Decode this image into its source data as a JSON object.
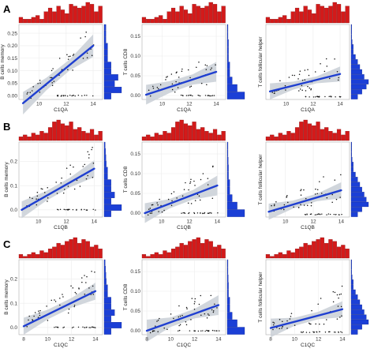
{
  "colors": {
    "histogram_top": "#d31a1a",
    "histogram_right": "#1b3fd6",
    "regression_line": "#1f3fd0",
    "confidence_band": "#c9cfd6",
    "points": "#111111",
    "panel_background": "#ffffff",
    "grid": "#ececec"
  },
  "chart_data": [
    {
      "type": "scatter",
      "panel_label": "A",
      "xlabel": "C1QA",
      "ylabel": "B cells memory",
      "xticks": [
        "10",
        "12",
        "14"
      ],
      "yticks": [
        "0.00",
        "0.05",
        "0.10",
        "0.15",
        "0.20",
        "0.25"
      ],
      "xlim": [
        8.5,
        14.7
      ],
      "ylim": [
        -0.015,
        0.285
      ],
      "fit": {
        "x0": 8.8,
        "y0": -0.03,
        "x1": 14,
        "y1": 0.2
      },
      "band": [
        0.045,
        0.025,
        0.022,
        0.045
      ],
      "hist_top": [
        3,
        2,
        2,
        3,
        4,
        2,
        6,
        8,
        6,
        9,
        7,
        5,
        10,
        9,
        8,
        9,
        11,
        10,
        6,
        9
      ],
      "hist_right": [
        2,
        5,
        3,
        4,
        2,
        2,
        1,
        1,
        1,
        0.5,
        0.5,
        0.5
      ]
    },
    {
      "type": "scatter",
      "panel_label": "",
      "xlabel": "C1QA",
      "ylabel": "T cells CD8",
      "xticks": [
        "10",
        "12",
        "14"
      ],
      "yticks": [
        "0.00",
        "0.05",
        "0.10",
        "0.15"
      ],
      "xlim": [
        8.5,
        14.7
      ],
      "ylim": [
        -0.01,
        0.18
      ],
      "fit": {
        "x0": 8.8,
        "y0": 0.002,
        "x1": 14,
        "y1": 0.06
      },
      "band": [
        0.025,
        0.015,
        0.013,
        0.025
      ],
      "hist_top": [
        3,
        2,
        2,
        3,
        4,
        2,
        6,
        8,
        6,
        9,
        7,
        5,
        10,
        9,
        8,
        9,
        11,
        10,
        6,
        9
      ],
      "hist_right": [
        7,
        4,
        2,
        1,
        1,
        0.5,
        0.5,
        0.5,
        0.3,
        0.3
      ]
    },
    {
      "type": "scatter",
      "panel_label": "",
      "xlabel": "C1QA",
      "ylabel": "T cells follicular helper",
      "xticks": [
        "10",
        "12",
        "14"
      ],
      "yticks": [],
      "xlim": [
        8.5,
        14.7
      ],
      "ylim": [
        -0.01,
        0.27
      ],
      "fit": {
        "x0": 8.8,
        "y0": 0.02,
        "x1": 14,
        "y1": 0.085
      },
      "band": [
        0.03,
        0.015,
        0.013,
        0.028
      ],
      "hist_top": [
        3,
        2,
        2,
        3,
        4,
        2,
        6,
        8,
        6,
        9,
        7,
        5,
        10,
        9,
        8,
        9,
        11,
        10,
        6,
        9
      ],
      "hist_right": [
        3,
        5,
        7,
        8,
        6,
        5,
        4,
        3,
        2,
        1,
        1,
        0.5,
        0.3,
        0.3,
        0.3
      ]
    },
    {
      "type": "scatter",
      "panel_label": "B",
      "xlabel": "C1QB",
      "ylabel": "B cells memory",
      "xticks": [
        "10",
        "12",
        "14"
      ],
      "yticks": [
        "0.0",
        "0.1",
        "0.2"
      ],
      "xlim": [
        8.6,
        14.6
      ],
      "ylim": [
        -0.03,
        0.28
      ],
      "fit": {
        "x0": 8.8,
        "y0": 0.0,
        "x1": 14,
        "y1": 0.17
      },
      "band": [
        0.035,
        0.02,
        0.02,
        0.035
      ],
      "hist_top": [
        2,
        3,
        2,
        4,
        3,
        5,
        4,
        7,
        10,
        11,
        9,
        8,
        10,
        6,
        7,
        5,
        4,
        6,
        3,
        5
      ],
      "hist_right": [
        2,
        5,
        2,
        3,
        2,
        2,
        1,
        1,
        0.6,
        0.5,
        0.4,
        0.3
      ]
    },
    {
      "type": "scatter",
      "panel_label": "",
      "xlabel": "C1QB",
      "ylabel": "T cells CD8",
      "xticks": [
        "10",
        "12",
        "14"
      ],
      "yticks": [
        "0.00",
        "0.05",
        "0.10",
        "0.15"
      ],
      "xlim": [
        8.6,
        14.6
      ],
      "ylim": [
        -0.01,
        0.18
      ],
      "fit": {
        "x0": 8.8,
        "y0": 0.0,
        "x1": 14,
        "y1": 0.07
      },
      "band": [
        0.025,
        0.012,
        0.012,
        0.025
      ],
      "hist_top": [
        2,
        3,
        2,
        4,
        3,
        5,
        4,
        7,
        10,
        11,
        9,
        8,
        10,
        6,
        7,
        5,
        4,
        6,
        3,
        5
      ],
      "hist_right": [
        7,
        4,
        2,
        1,
        1,
        0.5,
        0.5,
        0.4,
        0.3,
        0.3
      ]
    },
    {
      "type": "scatter",
      "panel_label": "",
      "xlabel": "C1QB",
      "ylabel": "T cells follicular helper",
      "xticks": [
        "10",
        "12",
        "14"
      ],
      "yticks": [],
      "xlim": [
        8.6,
        14.6
      ],
      "ylim": [
        -0.01,
        0.27
      ],
      "fit": {
        "x0": 8.8,
        "y0": 0.01,
        "x1": 14,
        "y1": 0.09
      },
      "band": [
        0.03,
        0.015,
        0.014,
        0.03
      ],
      "hist_top": [
        2,
        3,
        2,
        4,
        3,
        5,
        4,
        7,
        10,
        11,
        9,
        8,
        10,
        6,
        7,
        5,
        4,
        6,
        3,
        5
      ],
      "hist_right": [
        3,
        5,
        8,
        7,
        6,
        5,
        4,
        3,
        2,
        1,
        1,
        0.5,
        0.3,
        0.3,
        0.3
      ]
    },
    {
      "type": "scatter",
      "panel_label": "C",
      "xlabel": "C1QC",
      "ylabel": "B cells memory",
      "xticks": [
        "8",
        "10",
        "12",
        "14"
      ],
      "yticks": [
        "0.0",
        "0.1",
        "0.2"
      ],
      "xlim": [
        7.6,
        14.6
      ],
      "ylim": [
        -0.03,
        0.28
      ],
      "fit": {
        "x0": 8,
        "y0": 0.005,
        "x1": 14,
        "y1": 0.15
      },
      "band": [
        0.035,
        0.02,
        0.02,
        0.035
      ],
      "hist_top": [
        2,
        1,
        2,
        3,
        2,
        4,
        3,
        5,
        6,
        8,
        7,
        9,
        10,
        11,
        8,
        10,
        9,
        6,
        7,
        5
      ],
      "hist_right": [
        2,
        5,
        2,
        3,
        2,
        2,
        1,
        1,
        0.6,
        0.5,
        0.4,
        0.3
      ]
    },
    {
      "type": "scatter",
      "panel_label": "",
      "xlabel": "C1QC",
      "ylabel": "T cells CD8",
      "xticks": [
        "8",
        "10",
        "12",
        "14"
      ],
      "yticks": [
        "0.00",
        "0.05",
        "0.10",
        "0.15"
      ],
      "xlim": [
        7.6,
        14.6
      ],
      "ylim": [
        -0.01,
        0.18
      ],
      "fit": {
        "x0": 8,
        "y0": 0.0,
        "x1": 14,
        "y1": 0.065
      },
      "band": [
        0.028,
        0.012,
        0.012,
        0.025
      ],
      "hist_top": [
        2,
        1,
        2,
        3,
        2,
        4,
        3,
        5,
        6,
        8,
        7,
        9,
        10,
        11,
        8,
        10,
        9,
        6,
        7,
        5
      ],
      "hist_right": [
        7,
        4,
        2,
        1,
        1,
        0.5,
        0.5,
        0.4,
        0.3,
        0.3
      ]
    },
    {
      "type": "scatter",
      "panel_label": "",
      "xlabel": "C1QC",
      "ylabel": "T cells follicular helper",
      "xticks": [
        "8",
        "10",
        "12",
        "14"
      ],
      "yticks": [],
      "xlim": [
        7.6,
        14.6
      ],
      "ylim": [
        -0.01,
        0.27
      ],
      "fit": {
        "x0": 8,
        "y0": 0.015,
        "x1": 14,
        "y1": 0.085
      },
      "band": [
        0.035,
        0.015,
        0.014,
        0.03
      ],
      "hist_top": [
        2,
        1,
        2,
        3,
        2,
        4,
        3,
        5,
        6,
        8,
        7,
        9,
        10,
        11,
        8,
        10,
        9,
        6,
        7,
        5
      ],
      "hist_right": [
        3,
        5,
        8,
        7,
        6,
        5,
        4,
        3,
        2,
        1,
        1,
        0.5,
        0.3,
        0.3,
        0.3
      ]
    }
  ]
}
